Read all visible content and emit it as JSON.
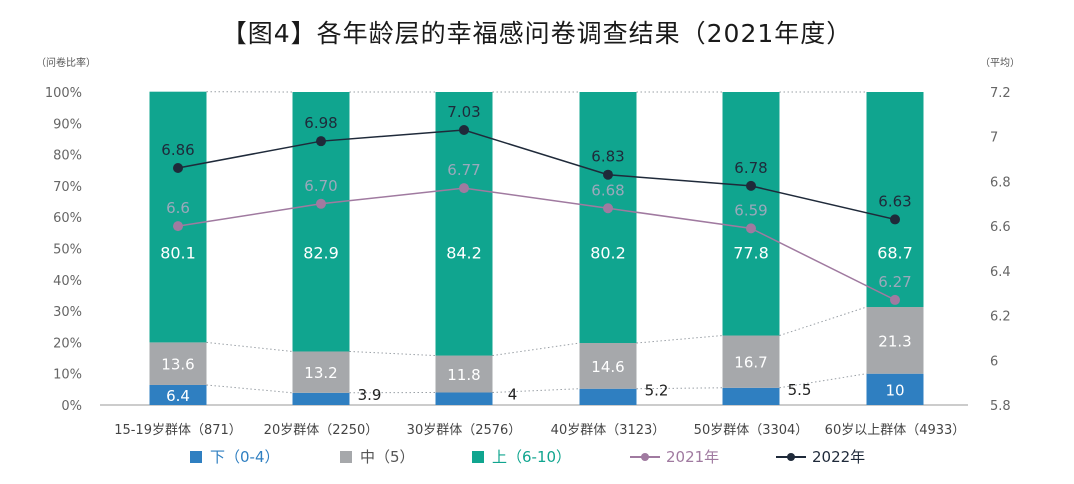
{
  "chart_data": {
    "type": "bar",
    "title": "【图4】各年龄层的幸福感问卷调查结果（2021年度）",
    "y_left_unit": "（问卷比率）",
    "y_right_unit": "（平均）",
    "y_left_ticks": [
      "100%",
      "90%",
      "80%",
      "70%",
      "60%",
      "50%",
      "40%",
      "30%",
      "20%",
      "10%",
      "0%"
    ],
    "y_right_ticks": [
      "7.2",
      "7",
      "6.8",
      "6.6",
      "6.4",
      "6.2",
      "6",
      "5.8"
    ],
    "ylim_left": [
      0,
      100
    ],
    "ylim_right": [
      5.8,
      7.2
    ],
    "categories": [
      "15-19岁群体（871）",
      "20岁群体（2250）",
      "30岁群体（2576）",
      "40岁群体（3123）",
      "50岁群体（3304）",
      "60岁以上群体（4933）"
    ],
    "stacked_series": [
      {
        "name": "下（0-4）",
        "color": "#2f7fc1",
        "values": [
          6.4,
          3.9,
          4,
          5.2,
          5.5,
          10
        ],
        "labels": [
          "6.4",
          "3.9",
          "4",
          "5.2",
          "5.5",
          "10"
        ]
      },
      {
        "name": "中（5）",
        "color": "#a6a8ab",
        "values": [
          13.6,
          13.2,
          11.8,
          14.6,
          16.7,
          21.3
        ],
        "labels": [
          "13.6",
          "13.2",
          "11.8",
          "14.6",
          "16.7",
          "21.3"
        ]
      },
      {
        "name": "上（6-10）",
        "color": "#10a58f",
        "values": [
          80.1,
          82.9,
          84.2,
          80.2,
          77.8,
          68.7
        ],
        "labels": [
          "80.1",
          "82.9",
          "84.2",
          "80.2",
          "77.8",
          "68.7"
        ]
      }
    ],
    "line_series": [
      {
        "name": "2021年",
        "color": "#a07aa0",
        "values": [
          6.6,
          6.7,
          6.77,
          6.68,
          6.59,
          6.27
        ],
        "labels": [
          "6.6",
          "6.70",
          "6.77",
          "6.68",
          "6.59",
          "6.27"
        ]
      },
      {
        "name": "2022年",
        "color": "#1f2a3a",
        "values": [
          6.86,
          6.98,
          7.03,
          6.83,
          6.78,
          6.63
        ],
        "labels": [
          "6.86",
          "6.98",
          "7.03",
          "6.83",
          "6.78",
          "6.63"
        ]
      }
    ]
  }
}
